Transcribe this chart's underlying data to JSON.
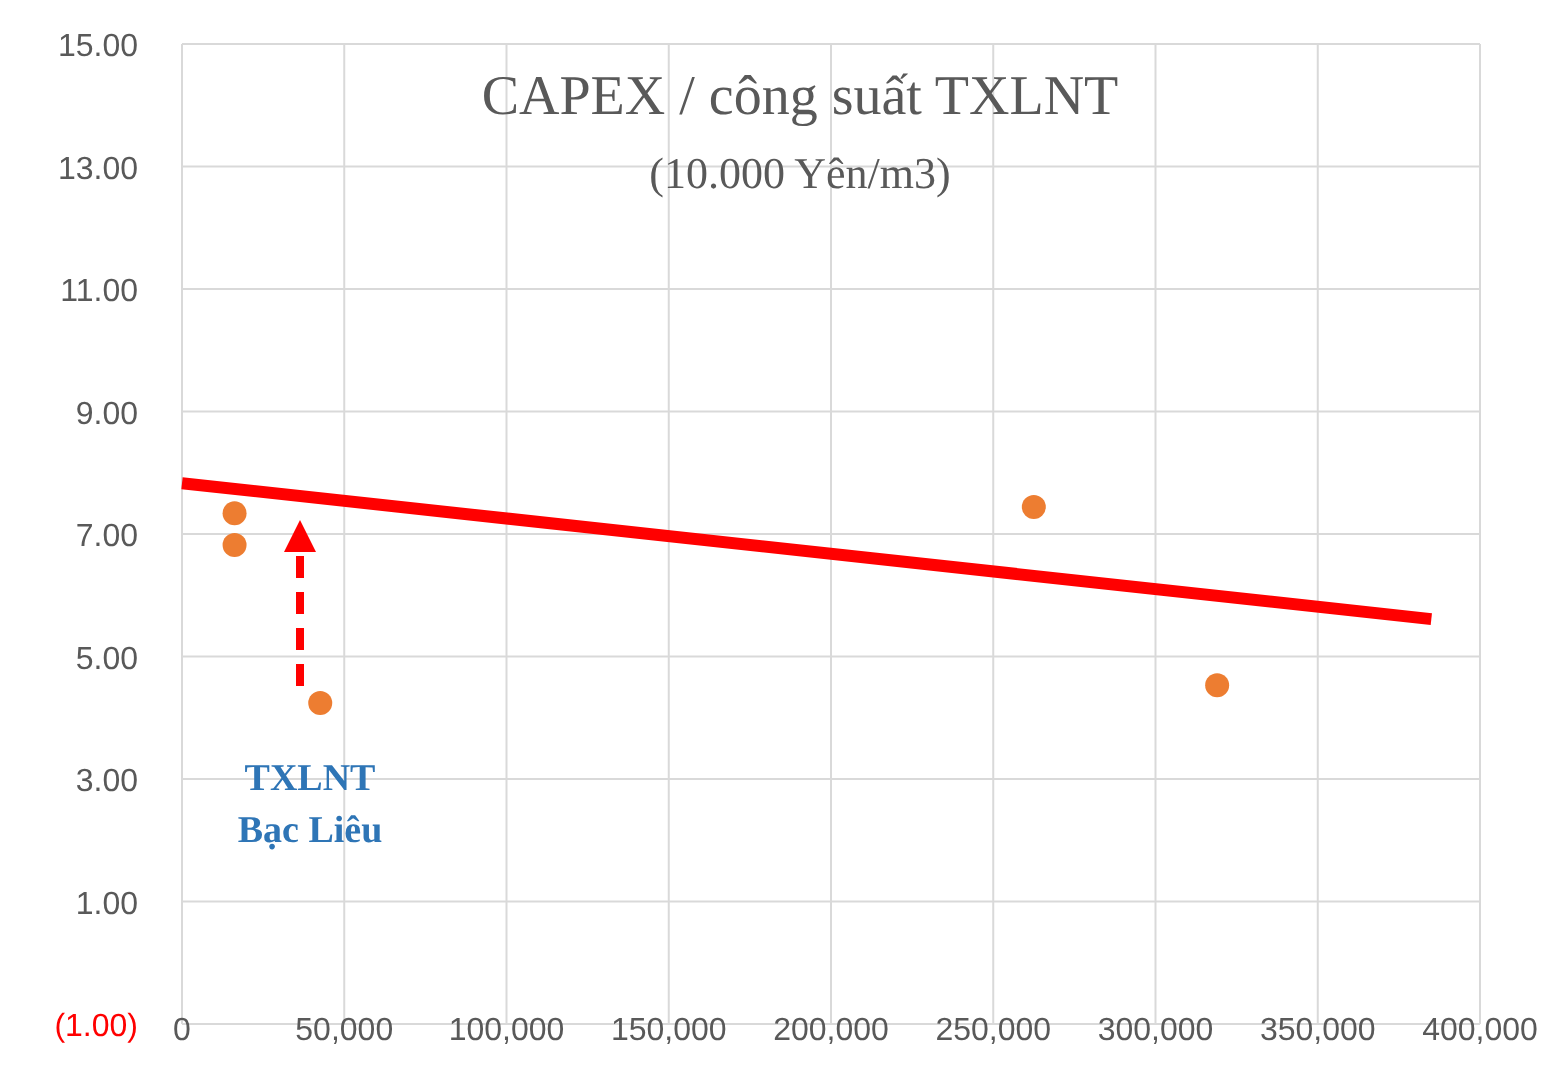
{
  "chart_data": {
    "type": "scatter",
    "title": "CAPEX  / công suất TXLNT",
    "subtitle": "(10.000 Yên/m3)",
    "xlim": [
      0,
      400000
    ],
    "xticks": [
      {
        "value": 0,
        "label": "0"
      },
      {
        "value": 50000,
        "label": "50,000"
      },
      {
        "value": 100000,
        "label": "100,000"
      },
      {
        "value": 150000,
        "label": "150,000"
      },
      {
        "value": 200000,
        "label": "200,000"
      },
      {
        "value": 250000,
        "label": "250,000"
      },
      {
        "value": 300000,
        "label": "300,000"
      },
      {
        "value": 350000,
        "label": "350,000"
      },
      {
        "value": 400000,
        "label": "400,000"
      }
    ],
    "ylim": [
      -1,
      15
    ],
    "yticks": [
      {
        "value": -1,
        "label": "(1.00)"
      },
      {
        "value": 1,
        "label": "1.00"
      },
      {
        "value": 3,
        "label": "3.00"
      },
      {
        "value": 5,
        "label": "5.00"
      },
      {
        "value": 7,
        "label": "7.00"
      },
      {
        "value": 9,
        "label": "9.00"
      },
      {
        "value": 11,
        "label": "11.00"
      },
      {
        "value": 13,
        "label": "13.00"
      },
      {
        "value": 15,
        "label": "15.00"
      }
    ],
    "grid": true,
    "marker": "circle",
    "series": [
      {
        "color": "#ed7d31",
        "x": [
          16200,
          16200,
          42600,
          262500,
          319000
        ],
        "values": [
          7.34,
          6.82,
          4.24,
          7.44,
          4.53
        ]
      },
      {
        "type": "line",
        "marker": "none",
        "color": "#ff0000",
        "x": [
          0,
          385000
        ],
        "values": [
          7.83,
          5.61
        ]
      }
    ],
    "annotations": [
      "TXLNT\nBạc Liêu"
    ]
  }
}
